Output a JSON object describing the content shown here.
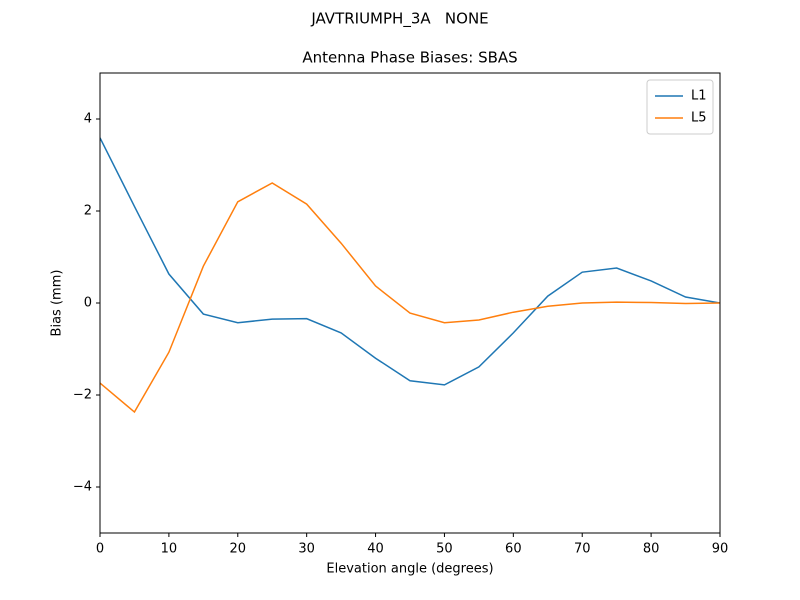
{
  "chart_data": {
    "type": "line",
    "suptitle": "JAVTRIUMPH_3A   NONE",
    "title": "Antenna Phase Biases: SBAS",
    "xlabel": "Elevation angle (degrees)",
    "ylabel": "Bias (mm)",
    "x": [
      0,
      5,
      10,
      15,
      20,
      25,
      30,
      35,
      40,
      45,
      50,
      55,
      60,
      65,
      70,
      75,
      80,
      85,
      90
    ],
    "series": [
      {
        "name": "L1",
        "color": "#1f77b4",
        "values": [
          3.59,
          2.1,
          0.63,
          -0.24,
          -0.43,
          -0.35,
          -0.34,
          -0.65,
          -1.2,
          -1.69,
          -1.78,
          -1.39,
          -0.65,
          0.15,
          0.67,
          0.76,
          0.48,
          0.13,
          0
        ]
      },
      {
        "name": "L5",
        "color": "#ff7f0e",
        "values": [
          -1.74,
          -2.37,
          -1.07,
          0.8,
          2.2,
          2.61,
          2.15,
          1.3,
          0.37,
          -0.22,
          -0.43,
          -0.37,
          -0.2,
          -0.07,
          0.0,
          0.02,
          0.01,
          -0.01,
          0
        ]
      }
    ],
    "xlim": [
      0,
      90
    ],
    "xticks": [
      0,
      10,
      20,
      30,
      40,
      50,
      60,
      70,
      80,
      90
    ],
    "ylim": [
      -5,
      5
    ],
    "yticks": [
      {
        "value": -4,
        "label": "−4"
      },
      {
        "value": -2,
        "label": "−2"
      },
      0,
      2,
      4
    ],
    "legend": "upper right",
    "grid": false
  }
}
